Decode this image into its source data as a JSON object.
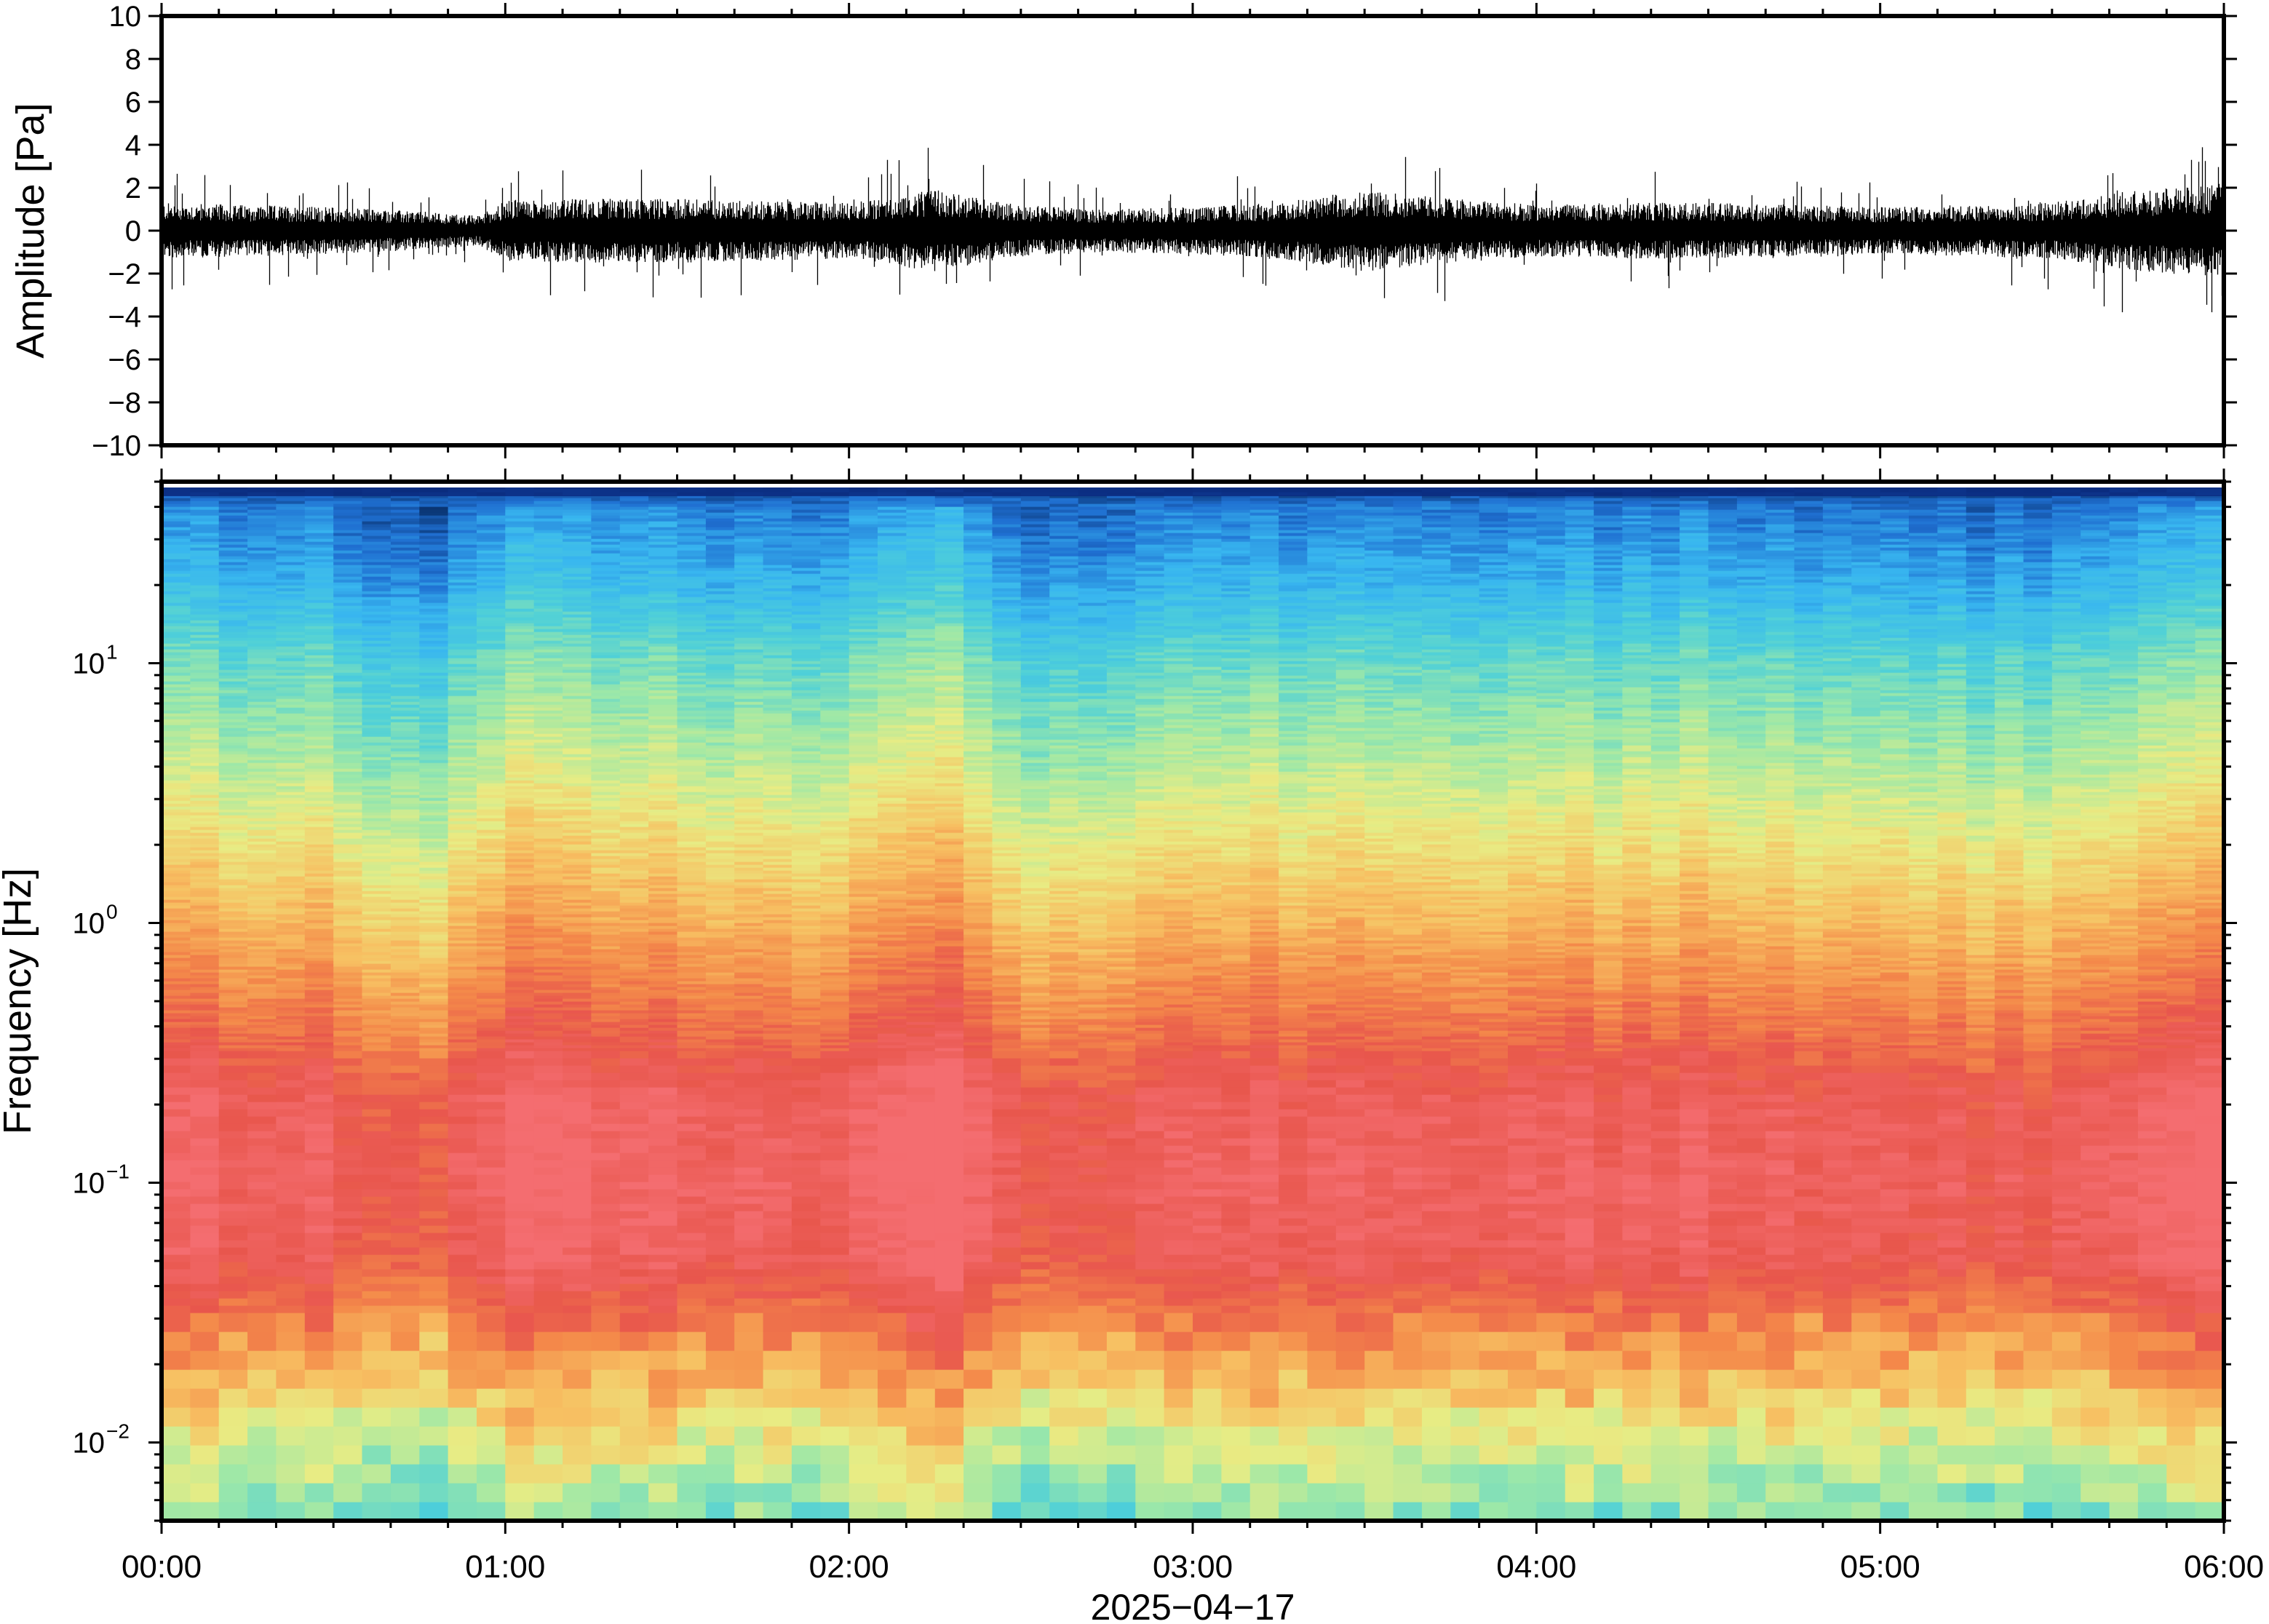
{
  "figure": {
    "date_label": "2025−04−17"
  },
  "chart_data": [
    {
      "id": "waveform",
      "type": "line",
      "title": "",
      "xlabel": "",
      "ylabel": "Amplitude [Pa]",
      "ylim": [
        -10,
        10
      ],
      "y_ticks": [
        -10,
        -8,
        -6,
        -4,
        -2,
        0,
        2,
        4,
        6,
        8,
        10
      ],
      "y_tick_labels": [
        "−10",
        "−8",
        "−6",
        "−4",
        "−2",
        "0",
        "2",
        "4",
        "6",
        "8",
        "10"
      ],
      "x_range_hours": [
        0,
        6
      ],
      "series": [
        {
          "color": "#000000",
          "x_hours": [
            0,
            0.25,
            0.5,
            0.75,
            0.92,
            1.0,
            1.25,
            1.5,
            1.75,
            2.0,
            2.25,
            2.5,
            2.75,
            3.0,
            3.25,
            3.5,
            3.75,
            4.0,
            4.25,
            4.5,
            4.75,
            5.0,
            5.25,
            5.5,
            5.75,
            6.0
          ],
          "envelope_pa": [
            1.3,
            1.2,
            1.1,
            0.9,
            0.7,
            1.4,
            1.5,
            1.5,
            1.4,
            1.3,
            1.9,
            1.2,
            1.0,
            1.1,
            1.3,
            1.9,
            1.5,
            1.2,
            1.3,
            1.3,
            1.2,
            1.1,
            1.2,
            1.3,
            1.9,
            2.2
          ],
          "max_pa": 4.1,
          "min_pa": -3.8
        }
      ]
    },
    {
      "id": "spectrogram",
      "type": "heatmap",
      "title": "",
      "ylabel": "Frequency [Hz]",
      "xlabel": "2025−04−17",
      "y_scale": "log",
      "ylim_hz": [
        0.005,
        50
      ],
      "y_ticks_hz": [
        0.01,
        0.1,
        1,
        10
      ],
      "y_tick_labels": [
        {
          "base": "10",
          "exp": "−2"
        },
        {
          "base": "10",
          "exp": "−1"
        },
        {
          "base": "10",
          "exp": "0"
        },
        {
          "base": "10",
          "exp": "1"
        }
      ],
      "x_ticks_hours": [
        0,
        1,
        2,
        3,
        4,
        5,
        6
      ],
      "x_tick_labels": [
        "00:00",
        "01:00",
        "02:00",
        "03:00",
        "04:00",
        "05:00",
        "06:00"
      ],
      "colormap": [
        "#08306b",
        "#1f6fd1",
        "#38b6f0",
        "#4fd0d8",
        "#9de8a8",
        "#e8ec84",
        "#f7c062",
        "#f48a4a",
        "#e8564c",
        "#f46d70"
      ],
      "profile_log10_hz": [
        -2.3,
        -2.0,
        -1.6,
        -1.3,
        -1.0,
        -0.7,
        -0.4,
        0.0,
        0.3,
        0.6,
        1.0,
        1.3,
        1.6,
        1.7
      ],
      "profile_level": [
        0.42,
        0.55,
        0.78,
        0.92,
        0.95,
        0.93,
        0.82,
        0.68,
        0.58,
        0.48,
        0.36,
        0.22,
        0.12,
        0.0
      ],
      "column_anomaly_hours": [
        0.35,
        0.8,
        1.0,
        1.5,
        1.85,
        2.3,
        2.5,
        3.0,
        3.55,
        4.0,
        4.5,
        5.0,
        5.4,
        5.85
      ],
      "column_anomaly": [
        0.02,
        -0.08,
        0.06,
        0.03,
        -0.02,
        0.09,
        -0.06,
        0.0,
        0.04,
        0.01,
        0.02,
        0.0,
        -0.02,
        0.07
      ]
    }
  ]
}
